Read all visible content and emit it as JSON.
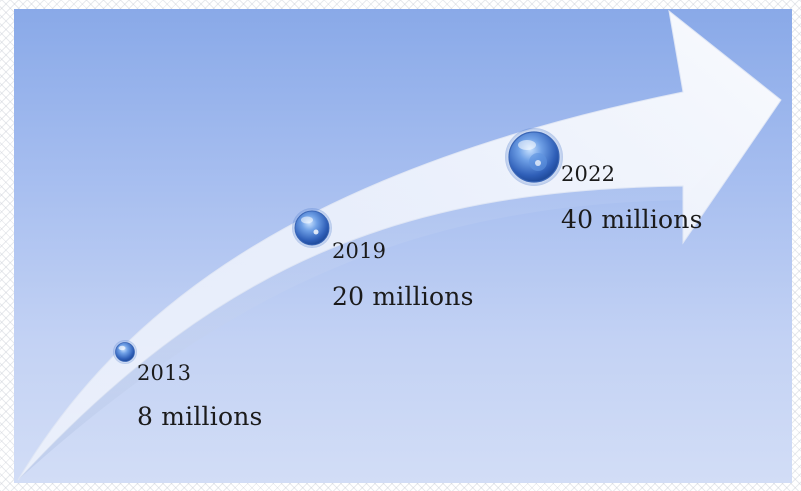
{
  "milestones": [
    {
      "year": "2013",
      "value": "8 millions"
    },
    {
      "year": "2019",
      "value": "20 millions"
    },
    {
      "year": "2022",
      "value": "40 millions"
    }
  ],
  "colors": {
    "background_top": "#89a9e8",
    "background_bottom": "#d2ddf6",
    "arrow_fill": "#eef2fb",
    "bubble_blue": "#3f72c9"
  },
  "icons": [
    "growth-arrow",
    "bubble-marker"
  ]
}
